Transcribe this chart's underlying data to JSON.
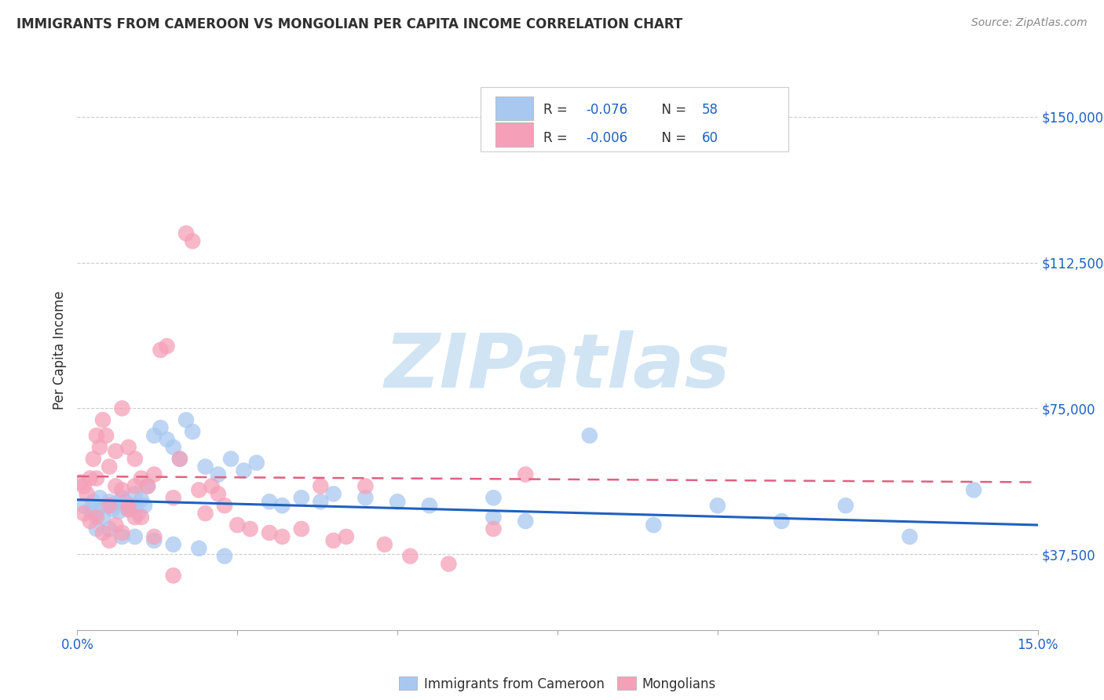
{
  "title": "IMMIGRANTS FROM CAMEROON VS MONGOLIAN PER CAPITA INCOME CORRELATION CHART",
  "source": "Source: ZipAtlas.com",
  "ylabel": "Per Capita Income",
  "xlim": [
    0.0,
    0.15
  ],
  "ylim": [
    18000,
    162000
  ],
  "yticks": [
    37500,
    75000,
    112500,
    150000
  ],
  "ytick_labels": [
    "$37,500",
    "$75,000",
    "$112,500",
    "$150,000"
  ],
  "grid_yticks": [
    37500,
    75000,
    112500,
    150000
  ],
  "legend_r_blue": "-0.076",
  "legend_n_blue": "58",
  "legend_r_pink": "-0.006",
  "legend_n_pink": "60",
  "blue_scatter_color": "#A8C8F0",
  "pink_scatter_color": "#F5A0B8",
  "blue_line_color": "#2060C0",
  "pink_line_color": "#E06080",
  "text_color_dark": "#303030",
  "text_color_blue": "#2060C0",
  "axis_color": "#aaaaaa",
  "grid_color": "#cccccc",
  "watermark_text": "ZIPatlas",
  "watermark_color": "#D0E4F4",
  "source_color": "#888888",
  "blue_x": [
    0.001,
    0.002,
    0.0025,
    0.003,
    0.0035,
    0.004,
    0.0045,
    0.005,
    0.0055,
    0.006,
    0.0065,
    0.007,
    0.0075,
    0.008,
    0.009,
    0.009,
    0.0095,
    0.01,
    0.0105,
    0.011,
    0.012,
    0.013,
    0.014,
    0.015,
    0.016,
    0.017,
    0.018,
    0.02,
    0.022,
    0.024,
    0.026,
    0.028,
    0.03,
    0.032,
    0.035,
    0.038,
    0.04,
    0.045,
    0.05,
    0.055,
    0.065,
    0.065,
    0.07,
    0.08,
    0.09,
    0.1,
    0.11,
    0.12,
    0.13,
    0.14,
    0.003,
    0.005,
    0.007,
    0.009,
    0.012,
    0.015,
    0.019,
    0.023
  ],
  "blue_y": [
    50000,
    49000,
    51000,
    48000,
    52000,
    47000,
    50000,
    51000,
    49000,
    50500,
    48500,
    52000,
    51000,
    49000,
    50000,
    53000,
    48000,
    51500,
    50000,
    55000,
    68000,
    70000,
    67000,
    65000,
    62000,
    72000,
    69000,
    60000,
    58000,
    62000,
    59000,
    61000,
    51000,
    50000,
    52000,
    51000,
    53000,
    52000,
    51000,
    50000,
    47000,
    52000,
    46000,
    68000,
    45000,
    50000,
    46000,
    50000,
    42000,
    54000,
    44000,
    44000,
    42000,
    42000,
    41000,
    40000,
    39000,
    37000
  ],
  "pink_x": [
    0.0005,
    0.001,
    0.0015,
    0.002,
    0.0025,
    0.003,
    0.003,
    0.0035,
    0.004,
    0.0045,
    0.005,
    0.005,
    0.006,
    0.006,
    0.007,
    0.007,
    0.008,
    0.008,
    0.009,
    0.009,
    0.01,
    0.011,
    0.012,
    0.013,
    0.014,
    0.015,
    0.016,
    0.017,
    0.018,
    0.019,
    0.02,
    0.021,
    0.022,
    0.023,
    0.025,
    0.027,
    0.03,
    0.032,
    0.035,
    0.038,
    0.04,
    0.042,
    0.045,
    0.048,
    0.052,
    0.058,
    0.065,
    0.07,
    0.001,
    0.002,
    0.003,
    0.004,
    0.005,
    0.006,
    0.007,
    0.008,
    0.009,
    0.01,
    0.012,
    0.015
  ],
  "pink_y": [
    56000,
    55000,
    53000,
    57000,
    62000,
    68000,
    57000,
    65000,
    72000,
    68000,
    60000,
    50000,
    55000,
    64000,
    54000,
    75000,
    65000,
    50000,
    62000,
    55000,
    57000,
    55000,
    58000,
    90000,
    91000,
    52000,
    62000,
    120000,
    118000,
    54000,
    48000,
    55000,
    53000,
    50000,
    45000,
    44000,
    43000,
    42000,
    44000,
    55000,
    41000,
    42000,
    55000,
    40000,
    37000,
    35000,
    44000,
    58000,
    48000,
    46000,
    47000,
    43000,
    41000,
    45000,
    43000,
    49000,
    47000,
    47000,
    42000,
    32000
  ],
  "blue_trend_x0": 0.0,
  "blue_trend_y0": 51500,
  "blue_trend_x1": 0.15,
  "blue_trend_y1": 45000,
  "pink_trend_x0": 0.0,
  "pink_trend_y0": 57500,
  "pink_trend_x1": 0.15,
  "pink_trend_y1": 56000
}
